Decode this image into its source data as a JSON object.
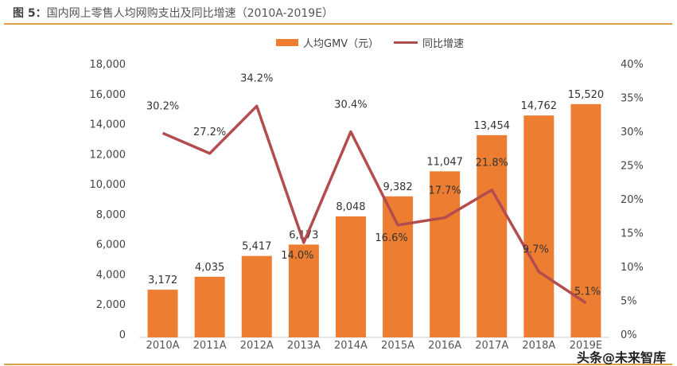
{
  "title_prefix": "图 5：",
  "title_text": "国内网上零售人均网购支出及同比增速（2010A-2019E）",
  "watermark": "头条@未来智库",
  "colors": {
    "bar": "#ED7D31",
    "line": "#B24C4E",
    "rule": "#D9A04A"
  },
  "chart_data": {
    "type": "bar+line",
    "categories": [
      "2010A",
      "2011A",
      "2012A",
      "2013A",
      "2014A",
      "2015A",
      "2016A",
      "2017A",
      "2018A",
      "2019E"
    ],
    "series": [
      {
        "name": "人均GMV（元）",
        "type": "bar",
        "axis": "left",
        "values": [
          3172,
          4035,
          5417,
          6173,
          8048,
          9382,
          11047,
          13454,
          14762,
          15520
        ],
        "labels": [
          "3,172",
          "4,035",
          "5,417",
          "6,173",
          "8,048",
          "9,382",
          "11,047",
          "13,454",
          "14,762",
          "15,520"
        ]
      },
      {
        "name": "同比增速",
        "type": "line",
        "axis": "right",
        "values": [
          30.2,
          27.2,
          34.2,
          14.0,
          30.4,
          16.6,
          17.7,
          21.8,
          9.7,
          5.1
        ],
        "labels": [
          "30.2%",
          "27.2%",
          "34.2%",
          "14.0%",
          "30.4%",
          "16.6%",
          "17.7%",
          "21.8%",
          "9.7%",
          "5.1%"
        ]
      }
    ],
    "y_left": {
      "range": [
        0,
        18000
      ],
      "ticks": [
        "0",
        "2,000",
        "4,000",
        "6,000",
        "8,000",
        "10,000",
        "12,000",
        "14,000",
        "16,000",
        "18,000"
      ]
    },
    "y_right": {
      "range": [
        0,
        40
      ],
      "ticks": [
        "0%",
        "5%",
        "10%",
        "15%",
        "20%",
        "25%",
        "30%",
        "35%",
        "40%"
      ]
    },
    "legend": "top",
    "grid": false
  }
}
